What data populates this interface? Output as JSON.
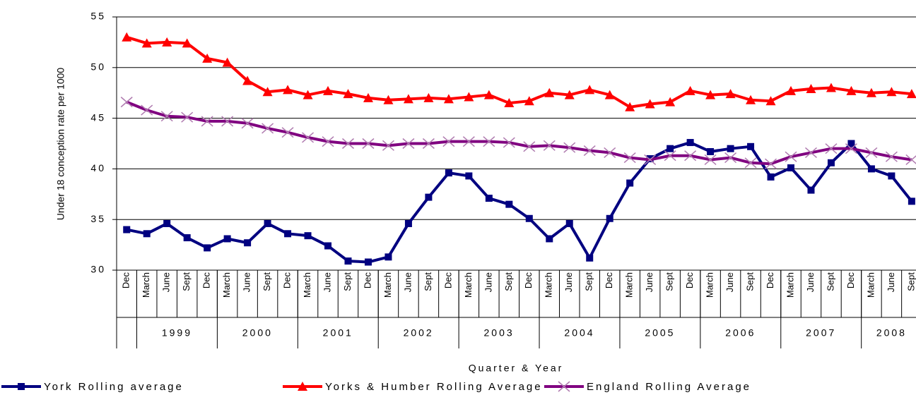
{
  "chart_data": {
    "type": "line",
    "y_label": "Under 18 conception rate per 1000",
    "x_label": "Quarter & Year",
    "categories": [
      "Dec",
      "March",
      "June",
      "Sept",
      "Dec",
      "March",
      "June",
      "Sept",
      "Dec",
      "March",
      "June",
      "Sept",
      "Dec",
      "March",
      "June",
      "Sept",
      "Dec",
      "March",
      "June",
      "Sept",
      "Dec",
      "March",
      "June",
      "Sept",
      "Dec",
      "March",
      "June",
      "Sept",
      "Dec",
      "March",
      "June",
      "Sept",
      "Dec",
      "March",
      "June",
      "Sept",
      "Dec",
      "March",
      "June",
      "Sept"
    ],
    "year_groups": [
      "1999",
      "2000",
      "2001",
      "2002",
      "2003",
      "2004",
      "2005",
      "2006",
      "2007",
      "2008"
    ],
    "ylim": [
      30,
      55
    ],
    "yticks": [
      30,
      35,
      40,
      45,
      50,
      55
    ],
    "grid": true,
    "series": [
      {
        "name": "York Rolling average",
        "color": "#000080",
        "marker": "square",
        "values": [
          34,
          33.6,
          34.6,
          33.2,
          32.2,
          33.1,
          32.7,
          34.6,
          33.6,
          33.4,
          32.4,
          30.9,
          30.8,
          31.3,
          34.6,
          37.2,
          39.6,
          39.3,
          37.1,
          36.5,
          35.1,
          33.1,
          34.6,
          31.2,
          35.1,
          38.6,
          41,
          42,
          42.6,
          41.7,
          42,
          42.2,
          39.2,
          40.1,
          37.9,
          40.6,
          42.5,
          40,
          39.3,
          36.8
        ]
      },
      {
        "name": "Yorks & Humber Rolling Average",
        "color": "#ff0000",
        "marker": "triangle",
        "values": [
          53,
          52.4,
          52.5,
          52.4,
          50.9,
          50.5,
          48.7,
          47.6,
          47.8,
          47.3,
          47.7,
          47.4,
          47,
          46.8,
          46.9,
          47,
          46.9,
          47.1,
          47.3,
          46.5,
          46.7,
          47.5,
          47.3,
          47.8,
          47.3,
          46.1,
          46.4,
          46.6,
          47.7,
          47.3,
          47.4,
          46.8,
          46.7,
          47.7,
          47.9,
          48,
          47.7,
          47.5,
          47.6,
          47.4
        ]
      },
      {
        "name": "England Rolling Average",
        "color": "#800080",
        "marker": "x",
        "values": [
          46.6,
          45.8,
          45.2,
          45.1,
          44.7,
          44.7,
          44.5,
          44,
          43.6,
          43.1,
          42.7,
          42.5,
          42.5,
          42.3,
          42.5,
          42.5,
          42.7,
          42.7,
          42.7,
          42.6,
          42.2,
          42.3,
          42.1,
          41.8,
          41.6,
          41.1,
          40.9,
          41.3,
          41.3,
          40.9,
          41.1,
          40.6,
          40.5,
          41.2,
          41.6,
          42,
          42,
          41.6,
          41.2,
          40.9
        ]
      }
    ]
  }
}
